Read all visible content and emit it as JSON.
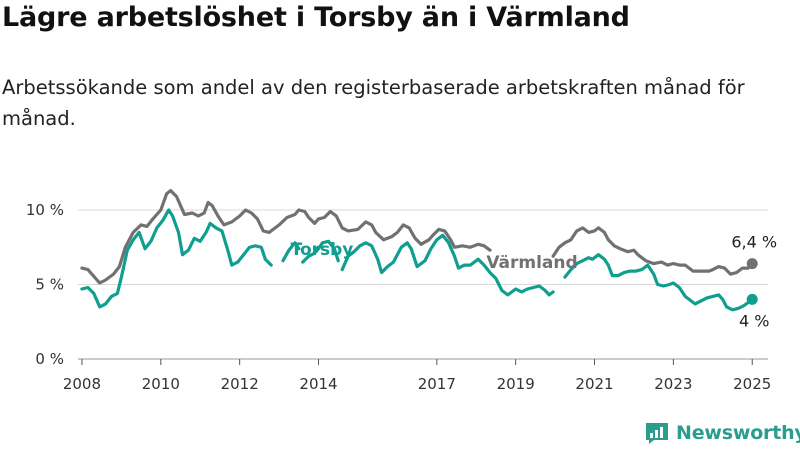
{
  "title": "Lägre arbetslöshet i Torsby än i Värmland",
  "subtitle": "Arbetssökande som andel av den registerbaserade arbetskraften månad för månad.",
  "brand": {
    "name": "Newsworthy"
  },
  "colors": {
    "torsby": "#0f9e8f",
    "varmland": "#717171",
    "grid": "#d9d9d9",
    "brand": "#2a9d8f"
  },
  "chart_data": {
    "type": "line",
    "xlim": [
      2007.9,
      2025.4
    ],
    "ylim": [
      0,
      12
    ],
    "x_ticks": [
      2008,
      2010,
      2012,
      2014,
      2017,
      2019,
      2021,
      2023,
      2025
    ],
    "x_tick_labels": [
      "2008",
      "2010",
      "2012",
      "2014",
      "2017",
      "2019",
      "2021",
      "2023",
      "2025"
    ],
    "y_ticks": [
      0,
      5,
      10
    ],
    "y_tick_labels": [
      "0 %",
      "5 %",
      "10 %"
    ],
    "grid": true,
    "series": [
      {
        "name": "Värmland",
        "gaps": [
          [
            2018.35,
            2019.95
          ]
        ],
        "points": [
          [
            2008.0,
            6.1
          ],
          [
            2008.15,
            6.0
          ],
          [
            2008.35,
            5.4
          ],
          [
            2008.45,
            5.1
          ],
          [
            2008.6,
            5.3
          ],
          [
            2008.8,
            5.7
          ],
          [
            2008.95,
            6.2
          ],
          [
            2009.1,
            7.5
          ],
          [
            2009.3,
            8.5
          ],
          [
            2009.5,
            9.0
          ],
          [
            2009.65,
            8.9
          ],
          [
            2009.8,
            9.4
          ],
          [
            2010.0,
            10.0
          ],
          [
            2010.15,
            11.1
          ],
          [
            2010.25,
            11.3
          ],
          [
            2010.4,
            10.9
          ],
          [
            2010.5,
            10.3
          ],
          [
            2010.6,
            9.7
          ],
          [
            2010.8,
            9.8
          ],
          [
            2010.95,
            9.6
          ],
          [
            2011.1,
            9.8
          ],
          [
            2011.2,
            10.5
          ],
          [
            2011.3,
            10.3
          ],
          [
            2011.45,
            9.6
          ],
          [
            2011.6,
            9.0
          ],
          [
            2011.8,
            9.2
          ],
          [
            2012.0,
            9.6
          ],
          [
            2012.15,
            10.0
          ],
          [
            2012.3,
            9.8
          ],
          [
            2012.45,
            9.4
          ],
          [
            2012.6,
            8.6
          ],
          [
            2012.75,
            8.5
          ],
          [
            2013.0,
            9.0
          ],
          [
            2013.2,
            9.5
          ],
          [
            2013.4,
            9.7
          ],
          [
            2013.5,
            10.0
          ],
          [
            2013.65,
            9.9
          ],
          [
            2013.75,
            9.5
          ],
          [
            2013.9,
            9.1
          ],
          [
            2014.0,
            9.4
          ],
          [
            2014.15,
            9.5
          ],
          [
            2014.3,
            9.9
          ],
          [
            2014.45,
            9.6
          ],
          [
            2014.6,
            8.8
          ],
          [
            2014.75,
            8.6
          ],
          [
            2015.0,
            8.7
          ],
          [
            2015.2,
            9.2
          ],
          [
            2015.35,
            9.0
          ],
          [
            2015.45,
            8.5
          ],
          [
            2015.65,
            8.0
          ],
          [
            2015.85,
            8.2
          ],
          [
            2016.0,
            8.5
          ],
          [
            2016.15,
            9.0
          ],
          [
            2016.3,
            8.8
          ],
          [
            2016.45,
            8.1
          ],
          [
            2016.6,
            7.7
          ],
          [
            2016.8,
            8.0
          ],
          [
            2016.9,
            8.3
          ],
          [
            2017.05,
            8.7
          ],
          [
            2017.2,
            8.6
          ],
          [
            2017.35,
            8.0
          ],
          [
            2017.45,
            7.5
          ],
          [
            2017.65,
            7.6
          ],
          [
            2017.85,
            7.5
          ],
          [
            2018.05,
            7.7
          ],
          [
            2018.2,
            7.6
          ],
          [
            2018.35,
            7.3
          ],
          [
            2019.95,
            6.9
          ],
          [
            2020.1,
            7.5
          ],
          [
            2020.25,
            7.8
          ],
          [
            2020.4,
            8.0
          ],
          [
            2020.55,
            8.6
          ],
          [
            2020.7,
            8.8
          ],
          [
            2020.85,
            8.5
          ],
          [
            2021.0,
            8.6
          ],
          [
            2021.1,
            8.8
          ],
          [
            2021.25,
            8.5
          ],
          [
            2021.35,
            8.0
          ],
          [
            2021.5,
            7.6
          ],
          [
            2021.65,
            7.4
          ],
          [
            2021.85,
            7.2
          ],
          [
            2022.0,
            7.3
          ],
          [
            2022.1,
            7.0
          ],
          [
            2022.3,
            6.6
          ],
          [
            2022.5,
            6.4
          ],
          [
            2022.7,
            6.5
          ],
          [
            2022.85,
            6.3
          ],
          [
            2023.0,
            6.4
          ],
          [
            2023.15,
            6.3
          ],
          [
            2023.3,
            6.3
          ],
          [
            2023.5,
            5.9
          ],
          [
            2023.7,
            5.9
          ],
          [
            2023.9,
            5.9
          ],
          [
            2024.0,
            6.0
          ],
          [
            2024.15,
            6.2
          ],
          [
            2024.3,
            6.1
          ],
          [
            2024.45,
            5.7
          ],
          [
            2024.6,
            5.8
          ],
          [
            2024.75,
            6.1
          ],
          [
            2024.9,
            6.1
          ],
          [
            2025.0,
            6.4
          ]
        ],
        "end_label": "6,4 %"
      },
      {
        "name": "Torsby",
        "gaps": [
          [
            2012.8,
            2013.1
          ],
          [
            2013.5,
            2013.6
          ],
          [
            2014.5,
            2014.6
          ],
          [
            2019.95,
            2020.25
          ]
        ],
        "points": [
          [
            2008.0,
            4.7
          ],
          [
            2008.15,
            4.8
          ],
          [
            2008.3,
            4.4
          ],
          [
            2008.45,
            3.5
          ],
          [
            2008.6,
            3.7
          ],
          [
            2008.75,
            4.2
          ],
          [
            2008.9,
            4.4
          ],
          [
            2009.0,
            5.5
          ],
          [
            2009.15,
            7.3
          ],
          [
            2009.3,
            8.0
          ],
          [
            2009.45,
            8.5
          ],
          [
            2009.6,
            7.4
          ],
          [
            2009.75,
            7.9
          ],
          [
            2009.9,
            8.8
          ],
          [
            2010.05,
            9.3
          ],
          [
            2010.2,
            10.0
          ],
          [
            2010.3,
            9.6
          ],
          [
            2010.45,
            8.5
          ],
          [
            2010.55,
            7.0
          ],
          [
            2010.7,
            7.3
          ],
          [
            2010.85,
            8.1
          ],
          [
            2011.0,
            7.9
          ],
          [
            2011.15,
            8.5
          ],
          [
            2011.25,
            9.1
          ],
          [
            2011.4,
            8.8
          ],
          [
            2011.55,
            8.6
          ],
          [
            2011.7,
            7.3
          ],
          [
            2011.8,
            6.3
          ],
          [
            2011.95,
            6.5
          ],
          [
            2012.1,
            7.0
          ],
          [
            2012.25,
            7.5
          ],
          [
            2012.4,
            7.6
          ],
          [
            2012.55,
            7.5
          ],
          [
            2012.65,
            6.7
          ],
          [
            2012.8,
            6.3
          ],
          [
            2013.1,
            6.6
          ],
          [
            2013.25,
            7.3
          ],
          [
            2013.4,
            7.8
          ],
          [
            2013.5,
            7.4
          ],
          [
            2013.6,
            6.5
          ],
          [
            2013.75,
            6.9
          ],
          [
            2013.9,
            7.1
          ],
          [
            2014.0,
            7.4
          ],
          [
            2014.1,
            7.8
          ],
          [
            2014.25,
            7.9
          ],
          [
            2014.4,
            7.4
          ],
          [
            2014.5,
            6.6
          ],
          [
            2014.6,
            6.0
          ],
          [
            2014.75,
            6.9
          ],
          [
            2014.9,
            7.2
          ],
          [
            2015.05,
            7.6
          ],
          [
            2015.2,
            7.8
          ],
          [
            2015.35,
            7.6
          ],
          [
            2015.5,
            6.7
          ],
          [
            2015.6,
            5.8
          ],
          [
            2015.75,
            6.2
          ],
          [
            2015.9,
            6.5
          ],
          [
            2016.1,
            7.5
          ],
          [
            2016.25,
            7.8
          ],
          [
            2016.35,
            7.4
          ],
          [
            2016.5,
            6.2
          ],
          [
            2016.7,
            6.6
          ],
          [
            2016.85,
            7.4
          ],
          [
            2017.0,
            8.0
          ],
          [
            2017.15,
            8.3
          ],
          [
            2017.3,
            7.8
          ],
          [
            2017.45,
            6.9
          ],
          [
            2017.55,
            6.1
          ],
          [
            2017.7,
            6.3
          ],
          [
            2017.85,
            6.3
          ],
          [
            2018.05,
            6.7
          ],
          [
            2018.2,
            6.3
          ],
          [
            2018.35,
            5.8
          ],
          [
            2018.5,
            5.4
          ],
          [
            2018.65,
            4.6
          ],
          [
            2018.8,
            4.3
          ],
          [
            2019.0,
            4.7
          ],
          [
            2019.15,
            4.5
          ],
          [
            2019.3,
            4.7
          ],
          [
            2019.45,
            4.8
          ],
          [
            2019.6,
            4.9
          ],
          [
            2019.75,
            4.6
          ],
          [
            2019.85,
            4.3
          ],
          [
            2019.95,
            4.5
          ],
          [
            2020.25,
            5.5
          ],
          [
            2020.4,
            6.0
          ],
          [
            2020.55,
            6.4
          ],
          [
            2020.7,
            6.6
          ],
          [
            2020.85,
            6.8
          ],
          [
            2020.95,
            6.7
          ],
          [
            2021.1,
            7.0
          ],
          [
            2021.25,
            6.7
          ],
          [
            2021.35,
            6.3
          ],
          [
            2021.45,
            5.6
          ],
          [
            2021.6,
            5.6
          ],
          [
            2021.75,
            5.8
          ],
          [
            2021.9,
            5.9
          ],
          [
            2022.05,
            5.9
          ],
          [
            2022.2,
            6.0
          ],
          [
            2022.35,
            6.3
          ],
          [
            2022.5,
            5.7
          ],
          [
            2022.6,
            5.0
          ],
          [
            2022.75,
            4.9
          ],
          [
            2022.9,
            5.0
          ],
          [
            2023.0,
            5.1
          ],
          [
            2023.15,
            4.8
          ],
          [
            2023.3,
            4.2
          ],
          [
            2023.45,
            3.9
          ],
          [
            2023.55,
            3.7
          ],
          [
            2023.7,
            3.9
          ],
          [
            2023.85,
            4.1
          ],
          [
            2024.0,
            4.2
          ],
          [
            2024.15,
            4.3
          ],
          [
            2024.25,
            4.0
          ],
          [
            2024.35,
            3.5
          ],
          [
            2024.5,
            3.3
          ],
          [
            2024.65,
            3.4
          ],
          [
            2024.8,
            3.6
          ],
          [
            2024.9,
            3.8
          ],
          [
            2025.0,
            4.0
          ]
        ],
        "end_label": "4 %"
      }
    ]
  }
}
